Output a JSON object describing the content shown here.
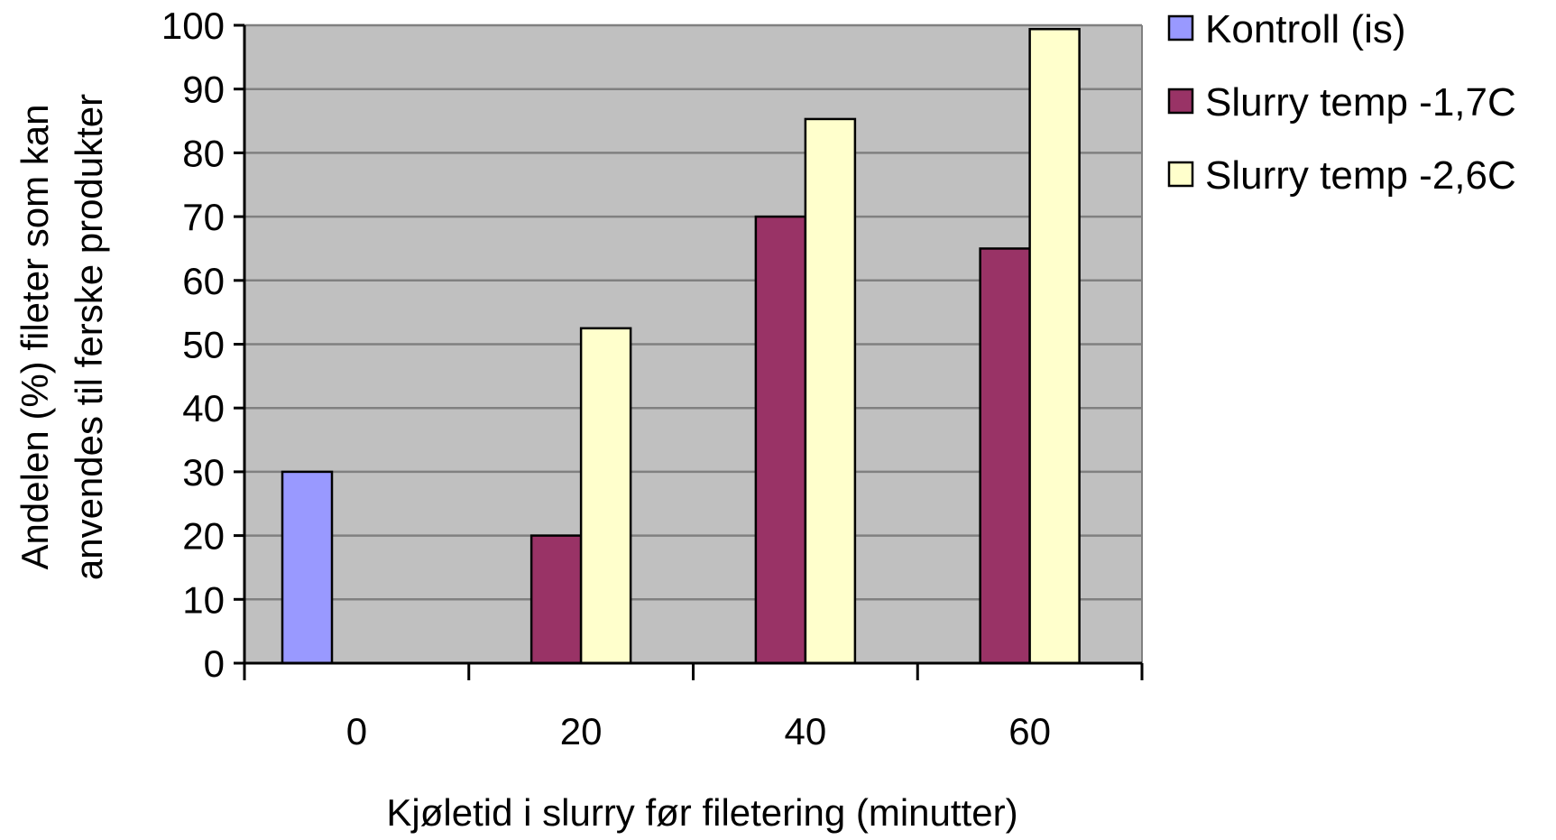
{
  "chart_data": {
    "type": "bar",
    "title": "",
    "xlabel": "Kjøletid i slurry før filetering (minutter)",
    "ylabel_lines": [
      "Andelen (%) fileter som kan",
      "anvendes til ferske produkter"
    ],
    "categories": [
      "0",
      "20",
      "40",
      "60"
    ],
    "ylim": [
      0,
      100
    ],
    "yticks": [
      0,
      10,
      20,
      30,
      40,
      50,
      60,
      70,
      80,
      90,
      100
    ],
    "grid": true,
    "legend_position": "right-top",
    "series": [
      {
        "name": "Kontroll (is)",
        "color": "#9999ff",
        "values": [
          30,
          null,
          null,
          null
        ]
      },
      {
        "name": "Slurry temp -1,7C",
        "color": "#993366",
        "values": [
          null,
          20,
          70,
          65
        ]
      },
      {
        "name": "Slurry temp -2,6C",
        "color": "#ffffcc",
        "values": [
          null,
          52.5,
          85.3,
          99.4
        ]
      }
    ],
    "plot_background": "#c0c0c0",
    "gridline_color": "#808080"
  }
}
